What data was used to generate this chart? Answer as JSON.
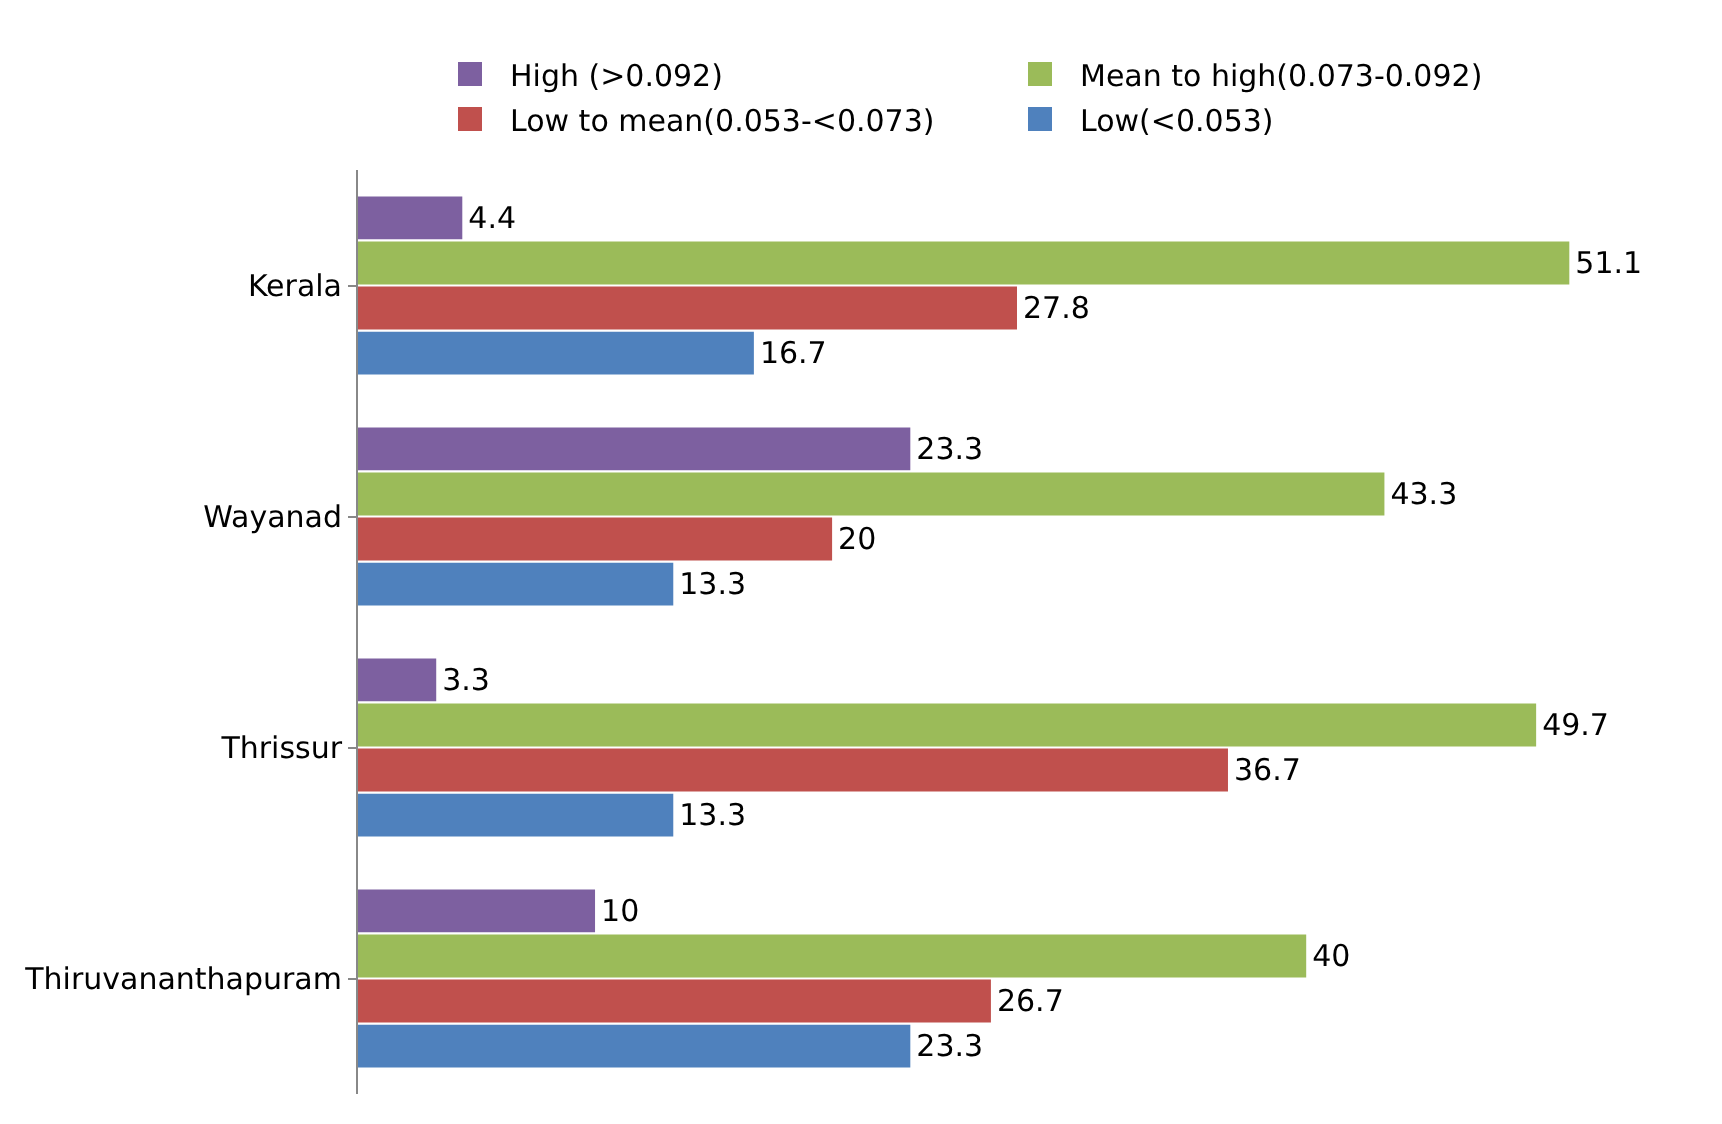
{
  "chart_data": {
    "type": "bar",
    "orientation": "horizontal",
    "categories": [
      "Kerala",
      "Wayanad",
      "Thrissur",
      "Thiruvananthapuram"
    ],
    "series": [
      {
        "name": "High (>0.092)",
        "color": "#7d60a0",
        "values": [
          4.4,
          23.3,
          3.3,
          10
        ]
      },
      {
        "name": "Mean to high(0.073-0.092)",
        "color": "#9bbb59",
        "values": [
          51.1,
          43.3,
          49.7,
          40
        ]
      },
      {
        "name": "Low to mean(0.053-<0.073)",
        "color": "#c0504d",
        "values": [
          27.8,
          20,
          36.7,
          26.7
        ]
      },
      {
        "name": "Low(<0.053)",
        "color": "#4f81bd",
        "values": [
          16.7,
          13.3,
          13.3,
          23.3
        ]
      }
    ],
    "data_labels": true,
    "legend": "top",
    "tick_labels": "y"
  }
}
